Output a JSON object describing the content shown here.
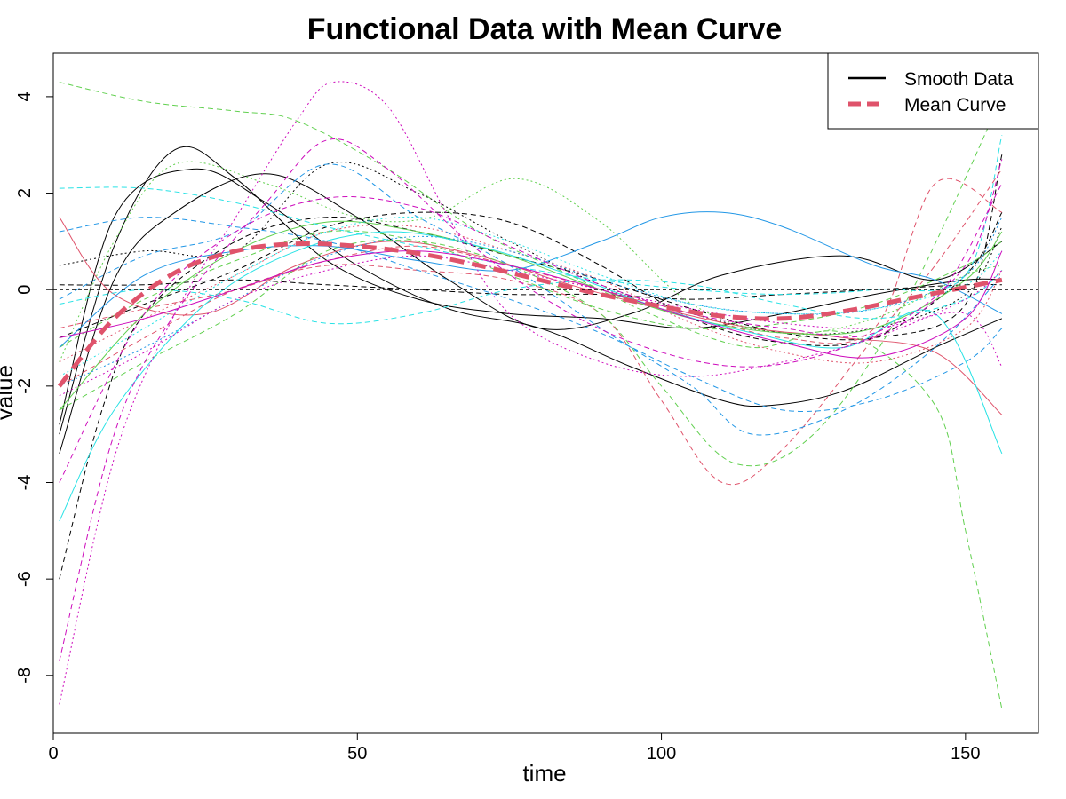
{
  "chart_data": {
    "type": "line",
    "title": "Functional Data with Mean Curve",
    "xlabel": "time",
    "ylabel": "value",
    "xlim": [
      0,
      162
    ],
    "ylim": [
      -9.2,
      4.9
    ],
    "xticks": [
      0,
      50,
      100,
      150
    ],
    "yticks": [
      -8,
      -6,
      -4,
      -2,
      0,
      2,
      4
    ],
    "hline": 0,
    "grid": false,
    "legend_position": "top-right",
    "legend": [
      {
        "label": "Smooth Data",
        "color": "#000000",
        "style": "solid"
      },
      {
        "label": "Mean Curve",
        "color": "#DF536B",
        "style": "dashed"
      }
    ],
    "palette": [
      "#000000",
      "#DF536B",
      "#61D04F",
      "#2297E6",
      "#28E2E5",
      "#CD0BBC"
    ],
    "series": [
      {
        "color": "#000000",
        "dash": "solid",
        "x": [
          1,
          10,
          20,
          30,
          45,
          60,
          75,
          90,
          105,
          120,
          135,
          150,
          156
        ],
        "y": [
          -3.0,
          0.9,
          2.9,
          2.3,
          0.6,
          -0.2,
          -0.5,
          -0.6,
          -0.8,
          -0.5,
          -0.1,
          0.2,
          0.2
        ]
      },
      {
        "color": "#000000",
        "dash": "solid",
        "x": [
          1,
          10,
          23,
          35,
          50,
          65,
          80,
          95,
          110,
          118,
          130,
          145,
          156
        ],
        "y": [
          -2.8,
          1.5,
          2.5,
          1.8,
          0.5,
          -0.4,
          -0.8,
          -1.6,
          -2.3,
          -2.4,
          -2.1,
          -1.2,
          -0.6
        ]
      },
      {
        "color": "#000000",
        "dash": "solid",
        "x": [
          1,
          10,
          20,
          35,
          50,
          65,
          80,
          95,
          110,
          130,
          145,
          156
        ],
        "y": [
          -3.4,
          0.2,
          1.6,
          2.4,
          1.5,
          0.2,
          -0.8,
          -0.5,
          0.3,
          0.7,
          0.2,
          1.0
        ]
      },
      {
        "color": "#000000",
        "dash": "dashed",
        "x": [
          1,
          8,
          15,
          30,
          45,
          60,
          75,
          90,
          105,
          120,
          135,
          150,
          156
        ],
        "y": [
          -6.0,
          -2.5,
          -0.5,
          1.0,
          1.5,
          1.2,
          0.7,
          0.2,
          -0.4,
          -0.9,
          -1.0,
          -0.3,
          2.8
        ]
      },
      {
        "color": "#000000",
        "dash": "dotted",
        "x": [
          1,
          15,
          30,
          45,
          60,
          75,
          90,
          105,
          120,
          135,
          150,
          156
        ],
        "y": [
          0.5,
          0.8,
          0.8,
          2.6,
          2.0,
          1.0,
          0.1,
          -0.5,
          -0.9,
          -0.8,
          -0.1,
          1.3
        ]
      },
      {
        "color": "#000000",
        "dash": "dashed",
        "x": [
          1,
          15,
          30,
          45,
          60,
          75,
          90,
          105,
          120,
          135,
          150,
          156
        ],
        "y": [
          0.1,
          0.1,
          0.2,
          0.1,
          0.0,
          -0.1,
          -0.1,
          -0.2,
          -0.1,
          0.0,
          0.1,
          0.1
        ]
      },
      {
        "color": "#000000",
        "dash": "dashed",
        "x": [
          1,
          15,
          30,
          45,
          60,
          75,
          90,
          105,
          120,
          135,
          150,
          156
        ],
        "y": [
          -1.0,
          -0.3,
          0.4,
          1.3,
          1.6,
          1.4,
          0.5,
          -0.6,
          -1.1,
          -1.0,
          0.3,
          1.6
        ]
      },
      {
        "color": "#DF536B",
        "dash": "solid",
        "x": [
          1,
          10,
          25,
          40,
          55,
          70,
          85,
          100,
          115,
          130,
          145,
          156
        ],
        "y": [
          1.5,
          -0.1,
          -0.5,
          0.5,
          1.0,
          0.7,
          0.1,
          -0.4,
          -0.8,
          -1.0,
          -1.3,
          -2.6
        ]
      },
      {
        "color": "#DF536B",
        "dash": "dashed",
        "x": [
          1,
          15,
          30,
          45,
          60,
          75,
          90,
          100,
          110,
          120,
          135,
          145,
          156
        ],
        "y": [
          -2.0,
          -1.0,
          0.0,
          0.5,
          0.4,
          0.2,
          -0.5,
          -2.3,
          -4.0,
          -3.3,
          -1.0,
          0.5,
          2.5
        ]
      },
      {
        "color": "#DF536B",
        "dash": "dashed",
        "x": [
          1,
          15,
          30,
          45,
          60,
          75,
          90,
          105,
          120,
          135,
          145,
          156
        ],
        "y": [
          -0.8,
          -0.4,
          0.0,
          0.6,
          0.9,
          0.5,
          0.0,
          -0.5,
          -1.0,
          -0.8,
          2.2,
          1.6
        ]
      },
      {
        "color": "#DF536B",
        "dash": "dotted",
        "x": [
          1,
          15,
          30,
          45,
          60,
          75,
          90,
          105,
          120,
          135,
          150,
          156
        ],
        "y": [
          -1.5,
          -0.6,
          0.3,
          1.2,
          1.3,
          0.8,
          0.2,
          -0.7,
          -1.3,
          -1.5,
          -0.8,
          0.4
        ]
      },
      {
        "color": "#61D04F",
        "dash": "dashed",
        "x": [
          1,
          15,
          30,
          40,
          55,
          70,
          85,
          100,
          115,
          130,
          145,
          150,
          156
        ],
        "y": [
          4.3,
          3.9,
          3.7,
          3.5,
          2.5,
          1.2,
          0.3,
          -0.6,
          -1.2,
          -0.9,
          -2.4,
          -5.0,
          -8.7
        ]
      },
      {
        "color": "#61D04F",
        "dash": "dashed",
        "x": [
          1,
          15,
          30,
          45,
          60,
          75,
          90,
          100,
          112,
          125,
          140,
          156
        ],
        "y": [
          -2.5,
          -1.5,
          -0.5,
          0.8,
          1.0,
          0.5,
          -0.5,
          -2.0,
          -3.6,
          -3.0,
          -0.3,
          4.0
        ]
      },
      {
        "color": "#61D04F",
        "dash": "dotted",
        "x": [
          1,
          10,
          20,
          35,
          50,
          62,
          76,
          90,
          105,
          120,
          135,
          150,
          156
        ],
        "y": [
          -1.5,
          1.0,
          2.6,
          2.2,
          1.5,
          1.5,
          2.3,
          1.4,
          -0.3,
          -0.9,
          -0.6,
          0.3,
          0.5
        ]
      },
      {
        "color": "#61D04F",
        "dash": "dashed",
        "x": [
          1,
          15,
          30,
          45,
          60,
          75,
          90,
          105,
          120,
          135,
          150,
          156
        ],
        "y": [
          -1.2,
          -0.2,
          0.6,
          1.2,
          1.0,
          0.3,
          -0.4,
          -0.8,
          -0.7,
          -0.3,
          0.5,
          1.0
        ]
      },
      {
        "color": "#61D04F",
        "dash": "solid",
        "x": [
          1,
          15,
          30,
          45,
          60,
          75,
          90,
          105,
          120,
          135,
          150,
          156
        ],
        "y": [
          -2.5,
          -0.5,
          0.8,
          1.4,
          1.2,
          0.7,
          0.0,
          -0.6,
          -0.9,
          -0.8,
          0.2,
          1.2
        ]
      },
      {
        "color": "#2297E6",
        "dash": "solid",
        "x": [
          1,
          15,
          30,
          45,
          60,
          75,
          90,
          100,
          110,
          120,
          135,
          145,
          156
        ],
        "y": [
          -1.2,
          0.3,
          0.8,
          0.9,
          0.6,
          0.4,
          1.0,
          1.5,
          1.6,
          1.3,
          0.5,
          0.2,
          -0.5
        ]
      },
      {
        "color": "#2297E6",
        "dash": "dashed",
        "x": [
          1,
          15,
          30,
          45,
          60,
          75,
          90,
          105,
          115,
          130,
          145,
          156
        ],
        "y": [
          -0.2,
          0.7,
          1.2,
          2.6,
          1.5,
          0.5,
          -0.8,
          -2.0,
          -3.0,
          -2.5,
          -1.2,
          0.3
        ]
      },
      {
        "color": "#2297E6",
        "dash": "dashed",
        "x": [
          1,
          15,
          30,
          45,
          60,
          75,
          90,
          105,
          120,
          135,
          150,
          156
        ],
        "y": [
          1.2,
          1.5,
          1.3,
          1.0,
          0.4,
          -0.2,
          -0.9,
          -1.8,
          -2.5,
          -2.3,
          -1.5,
          -0.8
        ]
      },
      {
        "color": "#2297E6",
        "dash": "dotted",
        "x": [
          1,
          15,
          30,
          45,
          60,
          75,
          90,
          105,
          120,
          135,
          150,
          156
        ],
        "y": [
          -2.0,
          -1.2,
          -0.2,
          0.7,
          1.1,
          0.8,
          0.2,
          -0.3,
          -0.5,
          -0.4,
          0.3,
          1.5
        ]
      },
      {
        "color": "#28E2E5",
        "dash": "dashed",
        "x": [
          1,
          15,
          30,
          45,
          60,
          75,
          90,
          105,
          120,
          135,
          150,
          156
        ],
        "y": [
          2.1,
          2.1,
          1.8,
          1.3,
          0.9,
          0.5,
          0.2,
          0.0,
          -0.1,
          0.0,
          0.3,
          3.2
        ]
      },
      {
        "color": "#28E2E5",
        "dash": "solid",
        "x": [
          1,
          10,
          25,
          40,
          55,
          70,
          85,
          100,
          115,
          130,
          145,
          156
        ],
        "y": [
          -4.8,
          -2.5,
          -0.3,
          0.8,
          1.2,
          0.9,
          0.3,
          -0.4,
          -0.9,
          -1.2,
          -0.5,
          -3.4
        ]
      },
      {
        "color": "#28E2E5",
        "dash": "dashed",
        "x": [
          1,
          15,
          30,
          45,
          60,
          75,
          90,
          105,
          120,
          135,
          150,
          156
        ],
        "y": [
          -0.3,
          0.0,
          -0.2,
          -0.7,
          -0.5,
          0.0,
          0.2,
          0.1,
          -0.3,
          -0.6,
          -0.2,
          0.4
        ]
      },
      {
        "color": "#28E2E5",
        "dash": "dotted",
        "x": [
          1,
          15,
          30,
          45,
          60,
          75,
          90,
          105,
          120,
          135,
          150,
          156
        ],
        "y": [
          -1.8,
          -0.8,
          0.3,
          1.2,
          1.5,
          1.0,
          0.3,
          -0.3,
          -0.5,
          -0.4,
          0.1,
          0.8
        ]
      },
      {
        "color": "#CD0BBC",
        "dash": "dotted",
        "x": [
          1,
          10,
          20,
          30,
          40,
          46,
          55,
          65,
          75,
          90,
          105,
          120,
          135,
          150,
          156
        ],
        "y": [
          -8.6,
          -3.5,
          -0.5,
          1.5,
          3.5,
          4.3,
          3.8,
          1.5,
          -0.5,
          -1.5,
          -1.8,
          -1.5,
          -1.0,
          -0.2,
          0.4
        ]
      },
      {
        "color": "#CD0BBC",
        "dash": "dashed",
        "x": [
          1,
          10,
          20,
          35,
          45,
          55,
          70,
          85,
          100,
          115,
          130,
          145,
          156
        ],
        "y": [
          -7.7,
          -3.0,
          -0.5,
          1.8,
          3.1,
          2.5,
          0.8,
          -0.5,
          -1.3,
          -1.6,
          -1.2,
          -0.2,
          2.2
        ]
      },
      {
        "color": "#CD0BBC",
        "dash": "dashed",
        "x": [
          1,
          15,
          30,
          45,
          60,
          75,
          90,
          105,
          120,
          135,
          150,
          156
        ],
        "y": [
          -4.0,
          -0.5,
          1.2,
          1.9,
          1.7,
          0.9,
          0.1,
          -0.5,
          -0.8,
          -0.9,
          0.5,
          2.7
        ]
      },
      {
        "color": "#CD0BBC",
        "dash": "dotted",
        "x": [
          1,
          15,
          30,
          45,
          60,
          75,
          90,
          105,
          120,
          135,
          150,
          156
        ],
        "y": [
          -2.2,
          -1.3,
          -0.2,
          0.4,
          0.7,
          0.4,
          0.0,
          -0.4,
          -0.7,
          -0.8,
          -0.5,
          -1.6
        ]
      },
      {
        "color": "#CD0BBC",
        "dash": "solid",
        "x": [
          1,
          15,
          30,
          45,
          60,
          75,
          90,
          105,
          120,
          135,
          150,
          156
        ],
        "y": [
          -1.0,
          -0.6,
          0.0,
          0.6,
          0.8,
          0.5,
          0.0,
          -0.6,
          -1.1,
          -1.4,
          -0.6,
          0.8
        ]
      }
    ],
    "mean_curve": {
      "color": "#DF536B",
      "x": [
        1,
        10,
        20,
        30,
        40,
        50,
        60,
        70,
        80,
        90,
        100,
        110,
        120,
        130,
        140,
        150,
        156
      ],
      "y": [
        -2.0,
        -0.6,
        0.35,
        0.8,
        0.95,
        0.9,
        0.75,
        0.5,
        0.2,
        -0.1,
        -0.35,
        -0.55,
        -0.6,
        -0.45,
        -0.2,
        0.05,
        0.2
      ]
    }
  }
}
